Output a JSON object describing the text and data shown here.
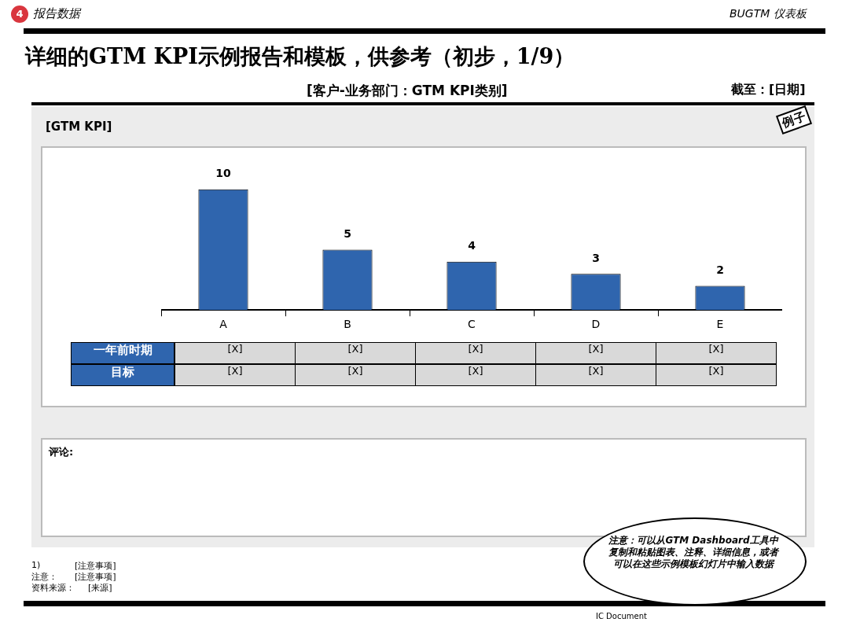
{
  "chart_data": {
    "type": "bar",
    "title": "详细的GTM KPI示例报告和模板，供参考（初步，1/9）",
    "subtitle": "[客户-业务部门：GTM KPI类别]",
    "categories": [
      "A",
      "B",
      "C",
      "D",
      "E"
    ],
    "values": [
      10,
      5,
      4,
      3,
      2
    ],
    "color": "#2f65ae",
    "data_labels": true,
    "grid": false,
    "legend": false,
    "annotations": [
      "4",
      "报告数据",
      "BUGTM 仪表板",
      "截至：[日期]",
      "[GTM KPI]",
      "例子",
      "一年前时期",
      "目标",
      "[X]",
      "[X]",
      "[X]",
      "[X]",
      "[X]",
      "[X]",
      "[X]",
      "[X]",
      "[X]",
      "[X]",
      "评论:",
      "1)",
      "[注意事项]",
      "注意：",
      "[注意事项]",
      "资料来源：",
      "[来源]",
      "注意：可以从GTM Dashboard工具中复制和粘贴图表、注释、详细信息，或者可以在这些示例模板幻灯片中输入数据",
      "IC Document"
    ]
  }
}
